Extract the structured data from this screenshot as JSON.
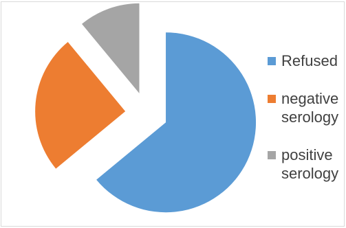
{
  "chart_data": {
    "type": "pie",
    "categories": [
      "Refused",
      "negative serology",
      "positive serology"
    ],
    "values": [
      64,
      25,
      11
    ],
    "colors": [
      "#5b9bd5",
      "#ed7d31",
      "#a5a5a5"
    ],
    "exploded": true,
    "start_angle_deg": 0,
    "direction": "clockwise",
    "legend": {
      "placement": "right",
      "labels": [
        "Refused",
        "negative\nserology",
        "positive\nserology"
      ]
    }
  }
}
